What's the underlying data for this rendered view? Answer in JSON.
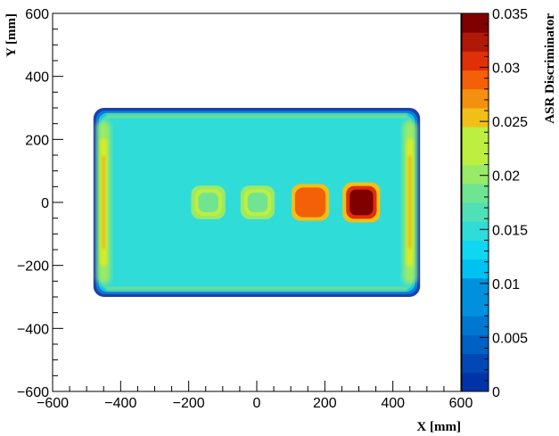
{
  "chart_data": {
    "type": "heatmap",
    "title": "",
    "xlabel": "X [mm]",
    "ylabel": "Y [mm]",
    "zlabel": "ASR Discriminator",
    "xlim": [
      -600,
      600
    ],
    "ylim": [
      -600,
      600
    ],
    "zlim": [
      0,
      0.035
    ],
    "x_ticks": [
      -600,
      -400,
      -200,
      0,
      200,
      400,
      600
    ],
    "x_tick_labels": [
      "−600",
      "−400",
      "−200",
      "0",
      "200",
      "400",
      "600"
    ],
    "y_ticks": [
      -600,
      -400,
      -200,
      0,
      200,
      400,
      600
    ],
    "y_tick_labels": [
      "−600",
      "−400",
      "−200",
      "0",
      "200",
      "400",
      "600"
    ],
    "z_ticks": [
      0,
      0.005,
      0.01,
      0.015,
      0.02,
      0.025,
      0.03,
      0.035
    ],
    "z_tick_labels": [
      "0",
      "0.005",
      "0.01",
      "0.015",
      "0.02",
      "0.025",
      "0.03",
      "0.035"
    ],
    "z_levels": 20,
    "colormap": [
      "#00209a",
      "#0033a8",
      "#0048b5",
      "#0060c4",
      "#0078d2",
      "#0090de",
      "#00a8ea",
      "#00c2f2",
      "#10d6f2",
      "#30dcd8",
      "#50e0b8",
      "#70e490",
      "#98ea68",
      "#bcef40",
      "#dcea20",
      "#f0c018",
      "#f49010",
      "#f46008",
      "#e03008",
      "#b01808",
      "#800000"
    ],
    "background_value": 0.0155,
    "grid": false,
    "regions": [
      {
        "kind": "panel",
        "x_range": [
          -480,
          480
        ],
        "y_range": [
          -300,
          300
        ],
        "value": 0.0155
      },
      {
        "kind": "edge-band",
        "x_range": [
          -470,
          -430
        ],
        "y_range": [
          -260,
          260
        ],
        "value": 0.021
      },
      {
        "kind": "edge-band",
        "x_range": [
          430,
          470
        ],
        "y_range": [
          -260,
          260
        ],
        "value": 0.021
      },
      {
        "kind": "square",
        "x_range": [
          -185,
          -100
        ],
        "y_range": [
          -45,
          45
        ],
        "value": 0.0195
      },
      {
        "kind": "square",
        "x_range": [
          -40,
          45
        ],
        "y_range": [
          -45,
          45
        ],
        "value": 0.0195
      },
      {
        "kind": "square",
        "x_range": [
          110,
          205
        ],
        "y_range": [
          -50,
          50
        ],
        "value": 0.029
      },
      {
        "kind": "square",
        "x_range": [
          260,
          355
        ],
        "y_range": [
          -55,
          55
        ],
        "value": 0.035
      }
    ]
  }
}
